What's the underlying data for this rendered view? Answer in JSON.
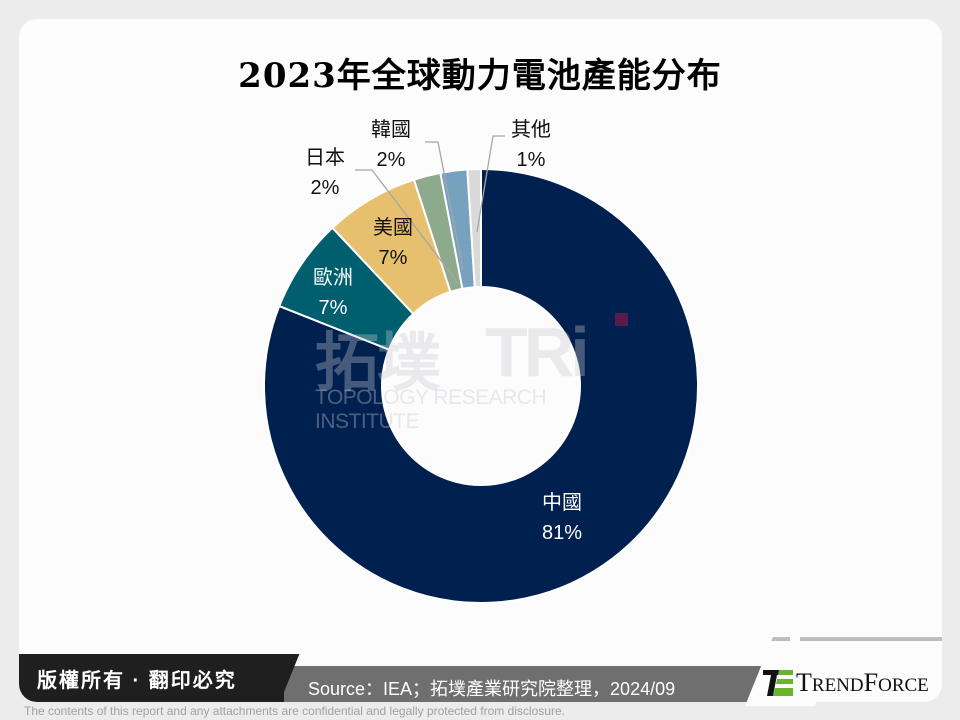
{
  "title": "2023年全球動力電池產能分布",
  "chart_data": {
    "type": "pie",
    "subtype": "donut",
    "title": "2023年全球動力電池產能分布",
    "categories": [
      "中國",
      "歐洲",
      "美國",
      "日本",
      "韓國",
      "其他"
    ],
    "values": [
      81,
      7,
      7,
      2,
      2,
      1
    ],
    "unit": "%",
    "colors": [
      "#00204f",
      "#005f6e",
      "#e6c06e",
      "#8daa8c",
      "#77a2bf",
      "#d9d9d9"
    ],
    "start_angle": "12 o'clock, clockwise",
    "legend": "none (data labels)"
  },
  "labels": {
    "china": {
      "name": "中國",
      "pct": "81%"
    },
    "europe": {
      "name": "歐洲",
      "pct": "7%"
    },
    "usa": {
      "name": "美國",
      "pct": "7%"
    },
    "japan": {
      "name": "日本",
      "pct": "2%"
    },
    "korea": {
      "name": "韓國",
      "pct": "2%"
    },
    "others": {
      "name": "其他",
      "pct": "1%"
    }
  },
  "watermark": {
    "cn": "拓墣",
    "abbr": "TRi",
    "en": "TOPOLOGY RESEARCH INSTITUTE"
  },
  "footer": {
    "copyright": "版權所有 · 翻印必究",
    "source": "Source：IEA；拓墣產業研究院整理，2024/09",
    "logo_text_1": "T",
    "logo_text_2": "REND",
    "logo_text_3": "F",
    "logo_text_4": "ORCE",
    "disclaimer": "The contents of this report and any attachments are confidential and legally protected from disclosure."
  }
}
